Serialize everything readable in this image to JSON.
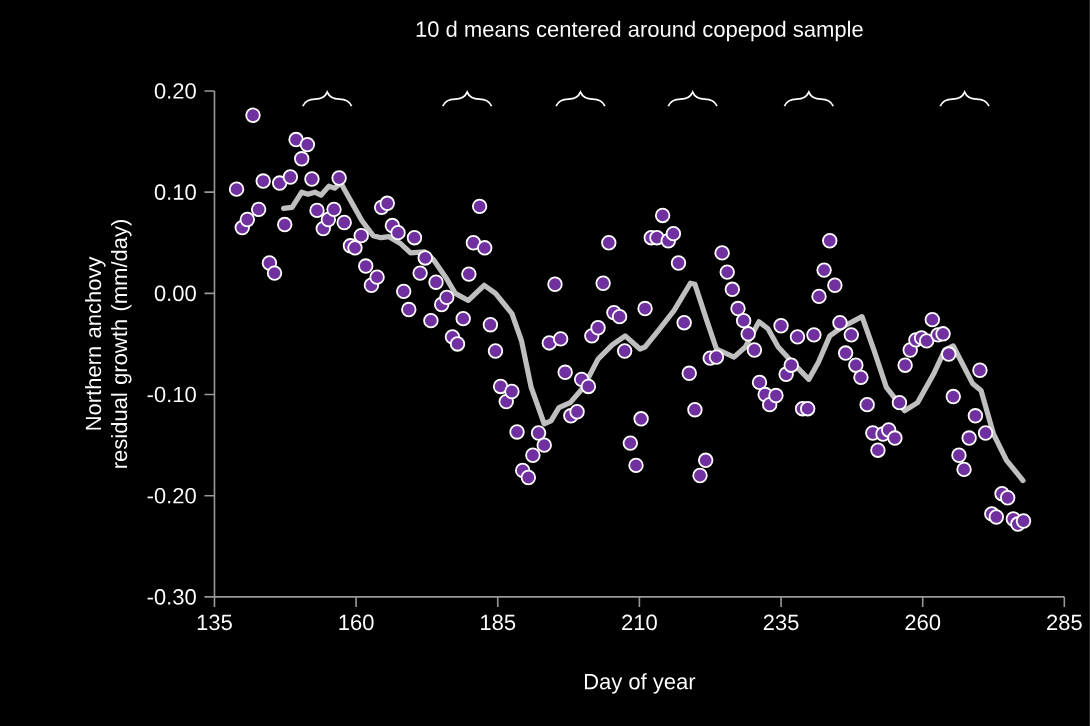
{
  "chart_data": {
    "type": "scatter",
    "title": "10 d means centered around copepod sample",
    "xlabel": "Day of year",
    "ylabel": "Northern anchovy residual growth (mm/day)",
    "xlim": [
      135,
      285
    ],
    "xticks": [
      135,
      160,
      185,
      210,
      235,
      260,
      285
    ],
    "ylim": [
      -0.3,
      0.2
    ],
    "yticks": [
      {
        "value": -0.3,
        "label": "-0.30"
      },
      {
        "value": -0.2,
        "label": "-0.20"
      },
      {
        "value": -0.1,
        "label": "-0.10"
      },
      {
        "value": 0,
        "label": "0.00"
      },
      {
        "value": 0.1,
        "label": "0.10"
      },
      {
        "value": 0.2,
        "label": "0.20"
      }
    ],
    "marker": "circle",
    "series": [
      {
        "color": "#7030a0",
        "x": [
          138.9,
          139.9,
          140.8,
          141.8,
          142.8,
          143.6,
          144.7,
          145.6,
          146.5,
          147.4,
          148.4,
          149.4,
          150.4,
          151.4,
          152.2,
          153.1,
          154.2,
          155.1,
          156.1,
          157.0,
          157.9,
          159.0,
          159.8,
          160.9,
          161.7,
          162.7,
          163.7,
          164.5,
          165.5,
          166.4,
          167.4,
          168.4,
          169.3,
          170.3,
          171.3,
          172.2,
          173.2,
          174.1,
          175.1,
          176.0,
          177.0,
          177.9,
          178.9,
          179.9,
          180.7,
          181.8,
          182.7,
          183.7,
          184.6,
          185.5,
          186.5,
          187.5,
          188.4,
          189.4,
          190.4,
          191.2,
          192.2,
          193.2,
          194.1,
          195.1,
          196.1,
          196.9,
          197.9,
          199.0,
          199.8,
          201.0,
          201.6,
          202.7,
          203.6,
          204.6,
          205.5,
          206.5,
          207.4,
          208.4,
          209.4,
          210.3,
          211.0,
          212.1,
          213.1,
          214.1,
          215.1,
          216.0,
          216.9,
          217.9,
          218.8,
          219.8,
          220.7,
          221.7,
          222.5,
          223.6,
          224.6,
          225.5,
          226.4,
          227.4,
          228.4,
          229.2,
          230.3,
          231.2,
          232.2,
          233.0,
          234.1,
          235.0,
          235.9,
          236.8,
          237.9,
          238.8,
          239.7,
          240.8,
          241.7,
          242.6,
          243.6,
          244.5,
          245.4,
          246.4,
          247.4,
          248.2,
          249.1,
          250.2,
          251.2,
          252.1,
          253.0,
          254.0,
          255.1,
          255.9,
          256.9,
          257.8,
          258.8,
          259.8,
          260.7,
          261.7,
          262.7,
          263.6,
          264.6,
          265.4,
          266.4,
          267.3,
          268.2,
          269.3,
          270.1,
          271.1,
          272.2,
          273.0,
          274.0,
          275.0,
          276.0,
          276.8,
          277.8
        ],
        "values": [
          0.103,
          0.065,
          0.073,
          0.176,
          0.083,
          0.111,
          0.03,
          0.02,
          0.109,
          0.068,
          0.115,
          0.152,
          0.133,
          0.147,
          0.113,
          0.082,
          0.064,
          0.073,
          0.083,
          0.114,
          0.07,
          0.047,
          0.045,
          0.057,
          0.027,
          0.008,
          0.016,
          0.085,
          0.089,
          0.067,
          0.06,
          0.002,
          -0.016,
          0.055,
          0.02,
          0.035,
          -0.027,
          0.011,
          -0.011,
          -0.004,
          -0.043,
          -0.05,
          -0.025,
          0.019,
          0.05,
          0.086,
          0.045,
          -0.031,
          -0.057,
          -0.092,
          -0.107,
          -0.097,
          -0.137,
          -0.175,
          -0.182,
          -0.16,
          -0.138,
          -0.15,
          -0.049,
          0.009,
          -0.045,
          -0.078,
          -0.121,
          -0.117,
          -0.085,
          -0.092,
          -0.042,
          -0.034,
          0.01,
          0.05,
          -0.019,
          -0.023,
          -0.057,
          -0.148,
          -0.17,
          -0.124,
          -0.015,
          0.055,
          0.055,
          0.077,
          0.052,
          0.059,
          0.03,
          -0.029,
          -0.079,
          -0.115,
          -0.18,
          -0.165,
          -0.064,
          -0.063,
          0.04,
          0.021,
          0.004,
          -0.015,
          -0.027,
          -0.04,
          -0.056,
          -0.088,
          -0.1,
          -0.11,
          -0.101,
          -0.032,
          -0.08,
          -0.071,
          -0.043,
          -0.114,
          -0.114,
          -0.041,
          -0.003,
          0.023,
          0.052,
          0.008,
          -0.029,
          -0.059,
          -0.041,
          -0.071,
          -0.083,
          -0.11,
          -0.138,
          -0.155,
          -0.139,
          -0.135,
          -0.143,
          -0.108,
          -0.071,
          -0.056,
          -0.046,
          -0.044,
          -0.047,
          -0.026,
          -0.041,
          -0.04,
          -0.06,
          -0.102,
          -0.16,
          -0.174,
          -0.143,
          -0.121,
          -0.076,
          -0.138,
          -0.218,
          -0.221,
          -0.198,
          -0.202,
          -0.223,
          -0.228,
          -0.225
        ]
      },
      {
        "type": "line",
        "marker": "none",
        "color": "#bfbfbf",
        "x": [
          147.2,
          148.7,
          150.4,
          151.5,
          152.7,
          153.8,
          155.2,
          156.2,
          157.3,
          159.0,
          161.0,
          163.0,
          164.4,
          165.8,
          167.9,
          169.6,
          172.1,
          173.7,
          175.8,
          177.5,
          179.8,
          182.6,
          184.6,
          187.5,
          189.2,
          190.9,
          193.2,
          194.4,
          195.8,
          197.8,
          200.1,
          202.7,
          205.2,
          207.5,
          210.1,
          211.0,
          213.3,
          216.1,
          219.0,
          219.8,
          221.9,
          223.6,
          226.7,
          228.7,
          231.1,
          232.7,
          234.5,
          237.3,
          239.9,
          241.6,
          243.6,
          245.9,
          249.3,
          251.4,
          253.6,
          256.8,
          259.1,
          261.9,
          263.9,
          265.4,
          268.8,
          270.3,
          272.5,
          274.8,
          277.7
        ],
        "values": [
          0.084,
          0.085,
          0.1,
          0.098,
          0.1,
          0.097,
          0.106,
          0.104,
          0.109,
          0.092,
          0.072,
          0.057,
          0.055,
          0.056,
          0.049,
          0.04,
          0.041,
          0.033,
          0.016,
          0.0,
          -0.007,
          0.008,
          0.0,
          -0.02,
          -0.047,
          -0.093,
          -0.129,
          -0.126,
          -0.113,
          -0.108,
          -0.093,
          -0.065,
          -0.051,
          -0.042,
          -0.055,
          -0.053,
          -0.037,
          -0.017,
          0.01,
          0.009,
          -0.027,
          -0.055,
          -0.063,
          -0.053,
          -0.028,
          -0.035,
          -0.053,
          -0.07,
          -0.085,
          -0.068,
          -0.042,
          -0.033,
          -0.023,
          -0.056,
          -0.093,
          -0.116,
          -0.108,
          -0.08,
          -0.056,
          -0.052,
          -0.089,
          -0.096,
          -0.139,
          -0.165,
          -0.185
        ]
      }
    ]
  }
}
